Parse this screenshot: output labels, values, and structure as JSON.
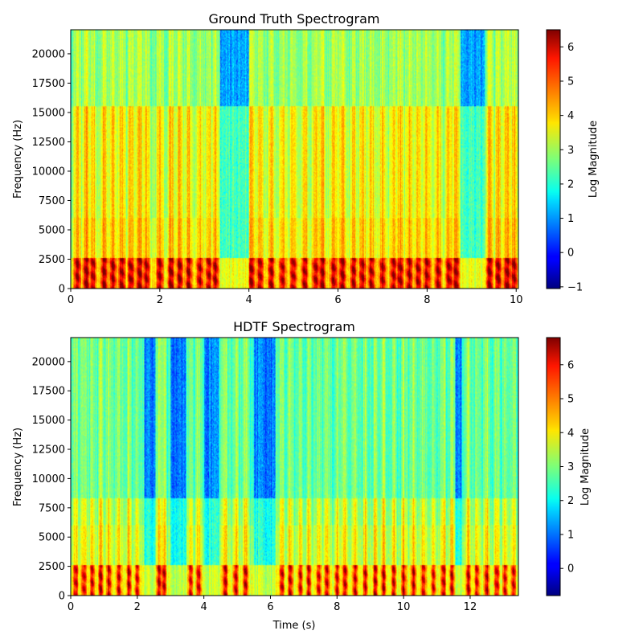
{
  "chart_data": [
    {
      "type": "heatmap",
      "title": "Ground Truth Spectrogram",
      "xlabel": "",
      "ylabel": "Frequency (Hz)",
      "xlim": [
        0,
        10.05
      ],
      "ylim": [
        0,
        22050
      ],
      "x_ticks": [
        0,
        2,
        4,
        6,
        8,
        10
      ],
      "x_tick_labels": [
        "0",
        "2",
        "4",
        "6",
        "8",
        "10"
      ],
      "y_ticks": [
        0,
        2500,
        5000,
        7500,
        10000,
        12500,
        15000,
        17500,
        20000
      ],
      "y_tick_labels": [
        "0",
        "2500",
        "5000",
        "7500",
        "10000",
        "12500",
        "15000",
        "17500",
        "20000"
      ],
      "colorbar": {
        "label": "Log Magnitude",
        "colormap": "jet",
        "vmin": -1.05,
        "vmax": 6.5,
        "ticks": [
          -1,
          0,
          1,
          2,
          3,
          4,
          5,
          6
        ],
        "tick_labels": [
          "−1",
          "0",
          "1",
          "2",
          "3",
          "4",
          "5",
          "6"
        ]
      },
      "cutoff_hz": 15500,
      "quiet_regions_s": [
        [
          3.35,
          4.0
        ],
        [
          8.75,
          9.3
        ]
      ],
      "onsets_s": [
        0.1,
        0.3,
        0.45,
        0.7,
        0.9,
        1.1,
        1.3,
        1.5,
        1.65,
        1.95,
        2.2,
        2.4,
        2.6,
        2.85,
        3.05,
        3.2,
        4.0,
        4.2,
        4.45,
        4.7,
        4.95,
        5.2,
        5.45,
        5.6,
        5.85,
        6.05,
        6.3,
        6.5,
        6.7,
        6.95,
        7.2,
        7.35,
        7.55,
        7.75,
        7.95,
        8.2,
        8.45,
        8.6,
        9.35,
        9.55,
        9.75,
        9.9
      ]
    },
    {
      "type": "heatmap",
      "title": "HDTF Spectrogram",
      "xlabel": "Time (s)",
      "ylabel": "Frequency (Hz)",
      "xlim": [
        0,
        13.45
      ],
      "ylim": [
        0,
        22050
      ],
      "x_ticks": [
        0,
        2,
        4,
        6,
        8,
        10,
        12
      ],
      "x_tick_labels": [
        "0",
        "2",
        "4",
        "6",
        "8",
        "10",
        "12"
      ],
      "y_ticks": [
        0,
        2500,
        5000,
        7500,
        10000,
        12500,
        15000,
        17500,
        20000
      ],
      "y_tick_labels": [
        "0",
        "2500",
        "5000",
        "7500",
        "10000",
        "12500",
        "15000",
        "17500",
        "20000"
      ],
      "colorbar": {
        "label": "Log Magnitude",
        "colormap": "jet",
        "vmin": -0.8,
        "vmax": 6.8,
        "ticks": [
          0,
          1,
          2,
          3,
          4,
          5,
          6
        ],
        "tick_labels": [
          "0",
          "1",
          "2",
          "3",
          "4",
          "5",
          "6"
        ]
      },
      "cutoff_hz": 8300,
      "quiet_regions_s": [
        [
          2.2,
          2.55
        ],
        [
          3.0,
          3.45
        ],
        [
          4.0,
          4.45
        ],
        [
          5.5,
          6.15
        ],
        [
          11.55,
          11.75
        ]
      ],
      "onsets_s": [
        0.1,
        0.35,
        0.6,
        0.85,
        1.1,
        1.4,
        1.7,
        1.95,
        2.6,
        2.75,
        3.55,
        3.8,
        4.6,
        4.9,
        5.2,
        6.3,
        6.55,
        6.85,
        7.1,
        7.4,
        7.65,
        7.95,
        8.2,
        8.5,
        8.8,
        9.1,
        9.35,
        9.65,
        9.95,
        10.25,
        10.55,
        10.85,
        11.15,
        11.4,
        11.9,
        12.15,
        12.45,
        12.75,
        13.0,
        13.25
      ]
    }
  ]
}
